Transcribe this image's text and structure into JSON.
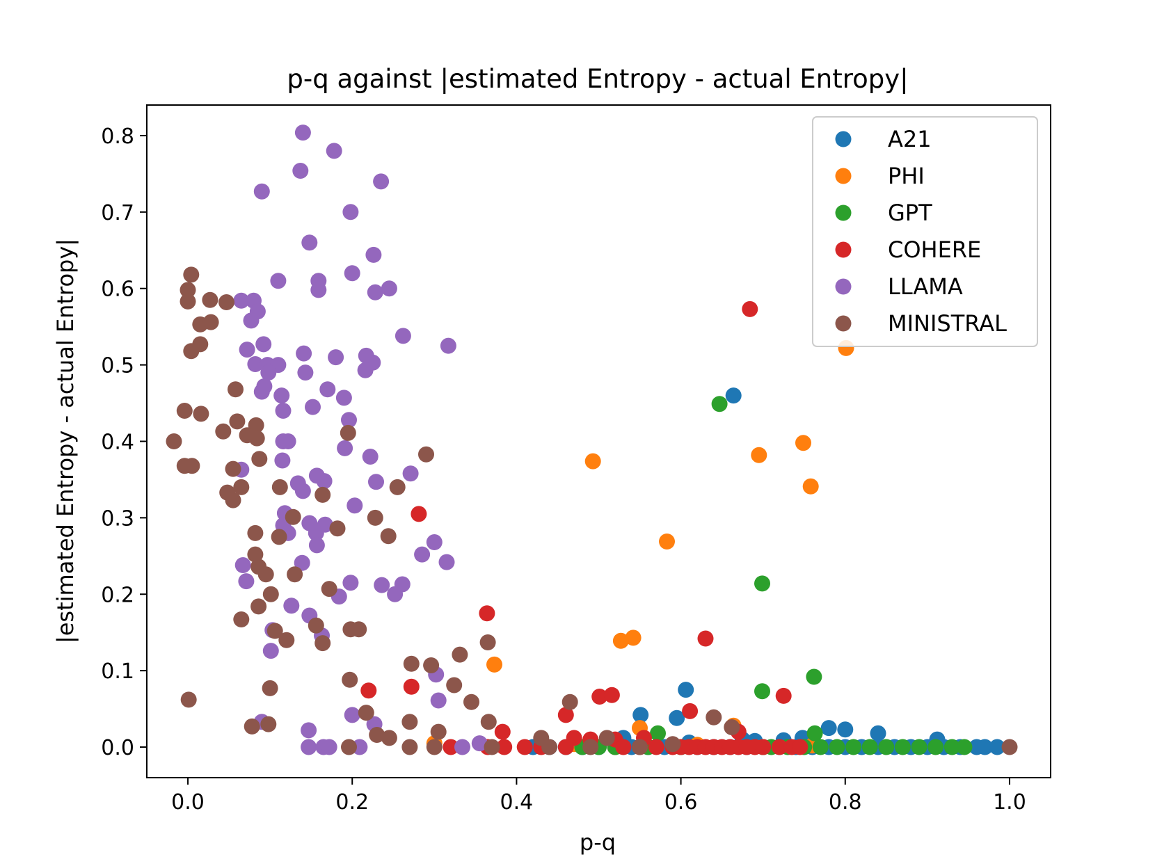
{
  "chart_data": {
    "type": "scatter",
    "title": "p-q against |estimated Entropy - actual Entropy|",
    "xlabel": "p-q",
    "ylabel": "|estimated Entropy - actual Entropy|",
    "xlim": [
      -0.05,
      1.05
    ],
    "ylim": [
      -0.04,
      0.84
    ],
    "xticks": [
      0.0,
      0.2,
      0.4,
      0.6,
      0.8,
      1.0
    ],
    "xtick_labels": [
      "0.0",
      "0.2",
      "0.4",
      "0.6",
      "0.8",
      "1.0"
    ],
    "yticks": [
      0.0,
      0.1,
      0.2,
      0.3,
      0.4,
      0.5,
      0.6,
      0.7,
      0.8
    ],
    "ytick_labels": [
      "0.0",
      "0.1",
      "0.2",
      "0.3",
      "0.4",
      "0.5",
      "0.6",
      "0.7",
      "0.8"
    ],
    "legend_position": "top-right",
    "series": [
      {
        "name": "A21",
        "color": "#1f77b4",
        "points": [
          [
            0.42,
            0
          ],
          [
            0.44,
            0
          ],
          [
            0.46,
            0
          ],
          [
            0.48,
            0
          ],
          [
            0.5,
            0
          ],
          [
            0.52,
            0
          ],
          [
            0.54,
            0
          ],
          [
            0.56,
            0
          ],
          [
            0.58,
            0
          ],
          [
            0.6,
            0
          ],
          [
            0.62,
            0
          ],
          [
            0.64,
            0
          ],
          [
            0.66,
            0
          ],
          [
            0.68,
            0
          ],
          [
            0.7,
            0
          ],
          [
            0.72,
            0
          ],
          [
            0.74,
            0
          ],
          [
            0.76,
            0
          ],
          [
            0.78,
            0
          ],
          [
            0.8,
            0
          ],
          [
            0.82,
            0
          ],
          [
            0.84,
            0
          ],
          [
            0.86,
            0
          ],
          [
            0.88,
            0
          ],
          [
            0.9,
            0
          ],
          [
            0.92,
            0
          ],
          [
            0.94,
            0
          ],
          [
            0.96,
            0
          ],
          [
            0.97,
            0
          ],
          [
            0.985,
            0
          ],
          [
            0.664,
            0.46
          ],
          [
            0.606,
            0.075
          ],
          [
            0.551,
            0.042
          ],
          [
            0.595,
            0.038
          ],
          [
            0.78,
            0.025
          ],
          [
            0.8,
            0.023
          ],
          [
            0.84,
            0.018
          ],
          [
            0.912,
            0.01
          ],
          [
            0.748,
            0.012
          ],
          [
            0.725,
            0.009
          ],
          [
            0.69,
            0.008
          ],
          [
            0.675,
            0.01
          ],
          [
            0.53,
            0.012
          ],
          [
            0.61,
            0.006
          ]
        ]
      },
      {
        "name": "PHI",
        "color": "#ff7f0e",
        "points": [
          [
            0.801,
            0.522
          ],
          [
            0.749,
            0.398
          ],
          [
            0.695,
            0.382
          ],
          [
            0.758,
            0.341
          ],
          [
            0.493,
            0.374
          ],
          [
            0.583,
            0.269
          ],
          [
            0.542,
            0.143
          ],
          [
            0.527,
            0.139
          ],
          [
            0.373,
            0.108
          ],
          [
            0.55,
            0.025
          ],
          [
            0.664,
            0.028
          ],
          [
            0.3,
            0.005
          ],
          [
            0.47,
            0.004
          ],
          [
            0.52,
            0
          ],
          [
            0.62,
            0.003
          ],
          [
            0.7,
            0
          ],
          [
            0.76,
            0.002
          ]
        ]
      },
      {
        "name": "GPT",
        "color": "#2ca02c",
        "points": [
          [
            0.647,
            0.449
          ],
          [
            0.699,
            0.214
          ],
          [
            0.762,
            0.092
          ],
          [
            0.699,
            0.073
          ],
          [
            0.572,
            0.018
          ],
          [
            0.763,
            0.018
          ],
          [
            0.48,
            0
          ],
          [
            0.5,
            0
          ],
          [
            0.52,
            0
          ],
          [
            0.56,
            0
          ],
          [
            0.6,
            0
          ],
          [
            0.7,
            0
          ],
          [
            0.71,
            0
          ],
          [
            0.73,
            0
          ],
          [
            0.75,
            0
          ],
          [
            0.77,
            0
          ],
          [
            0.79,
            0
          ],
          [
            0.81,
            0
          ],
          [
            0.83,
            0
          ],
          [
            0.85,
            0
          ],
          [
            0.87,
            0
          ],
          [
            0.89,
            0
          ],
          [
            0.91,
            0
          ],
          [
            0.93,
            0
          ],
          [
            0.945,
            0
          ]
        ]
      },
      {
        "name": "COHERE",
        "color": "#d62728",
        "points": [
          [
            0.684,
            0.573
          ],
          [
            0.281,
            0.305
          ],
          [
            0.364,
            0.175
          ],
          [
            0.63,
            0.142
          ],
          [
            0.22,
            0.074
          ],
          [
            0.272,
            0.079
          ],
          [
            0.501,
            0.066
          ],
          [
            0.516,
            0.068
          ],
          [
            0.725,
            0.067
          ],
          [
            0.611,
            0.047
          ],
          [
            0.46,
            0.042
          ],
          [
            0.383,
            0.02
          ],
          [
            0.67,
            0.02
          ],
          [
            0.47,
            0.012
          ],
          [
            0.49,
            0.01
          ],
          [
            0.52,
            0.01
          ],
          [
            0.555,
            0.012
          ],
          [
            0.385,
            0
          ],
          [
            0.41,
            0
          ],
          [
            0.43,
            0
          ],
          [
            0.46,
            0
          ],
          [
            0.53,
            0
          ],
          [
            0.55,
            0
          ],
          [
            0.57,
            0
          ],
          [
            0.59,
            0
          ],
          [
            0.6,
            0
          ],
          [
            0.61,
            0
          ],
          [
            0.62,
            0
          ],
          [
            0.63,
            0
          ],
          [
            0.64,
            0
          ],
          [
            0.65,
            0
          ],
          [
            0.66,
            0
          ],
          [
            0.67,
            0
          ],
          [
            0.68,
            0
          ],
          [
            0.69,
            0
          ],
          [
            0.7,
            0
          ],
          [
            0.72,
            0
          ],
          [
            0.735,
            0
          ],
          [
            0.745,
            0
          ],
          [
            0.32,
            0
          ],
          [
            0.365,
            0
          ]
        ]
      },
      {
        "name": "LLAMA",
        "color": "#9467bd",
        "points": [
          [
            0.14,
            0.804
          ],
          [
            0.178,
            0.78
          ],
          [
            0.137,
            0.754
          ],
          [
            0.235,
            0.74
          ],
          [
            0.09,
            0.727
          ],
          [
            0.198,
            0.7
          ],
          [
            0.148,
            0.66
          ],
          [
            0.226,
            0.644
          ],
          [
            0.2,
            0.62
          ],
          [
            0.11,
            0.61
          ],
          [
            0.159,
            0.61
          ],
          [
            0.159,
            0.598
          ],
          [
            0.228,
            0.595
          ],
          [
            0.245,
            0.6
          ],
          [
            0.065,
            0.584
          ],
          [
            0.08,
            0.584
          ],
          [
            0.085,
            0.57
          ],
          [
            0.077,
            0.558
          ],
          [
            0.262,
            0.538
          ],
          [
            0.317,
            0.525
          ],
          [
            0.092,
            0.527
          ],
          [
            0.141,
            0.515
          ],
          [
            0.072,
            0.52
          ],
          [
            0.18,
            0.51
          ],
          [
            0.217,
            0.512
          ],
          [
            0.225,
            0.503
          ],
          [
            0.082,
            0.501
          ],
          [
            0.097,
            0.5
          ],
          [
            0.11,
            0.5
          ],
          [
            0.098,
            0.49
          ],
          [
            0.143,
            0.49
          ],
          [
            0.216,
            0.493
          ],
          [
            0.09,
            0.465
          ],
          [
            0.093,
            0.472
          ],
          [
            0.17,
            0.468
          ],
          [
            0.114,
            0.46
          ],
          [
            0.19,
            0.457
          ],
          [
            0.152,
            0.445
          ],
          [
            0.116,
            0.44
          ],
          [
            0.196,
            0.428
          ],
          [
            0.116,
            0.4
          ],
          [
            0.122,
            0.4
          ],
          [
            0.191,
            0.391
          ],
          [
            0.222,
            0.38
          ],
          [
            0.115,
            0.375
          ],
          [
            0.065,
            0.363
          ],
          [
            0.271,
            0.358
          ],
          [
            0.157,
            0.355
          ],
          [
            0.166,
            0.348
          ],
          [
            0.229,
            0.347
          ],
          [
            0.134,
            0.345
          ],
          [
            0.14,
            0.335
          ],
          [
            0.203,
            0.316
          ],
          [
            0.118,
            0.306
          ],
          [
            0.148,
            0.293
          ],
          [
            0.167,
            0.291
          ],
          [
            0.116,
            0.29
          ],
          [
            0.156,
            0.28
          ],
          [
            0.122,
            0.28
          ],
          [
            0.3,
            0.268
          ],
          [
            0.157,
            0.264
          ],
          [
            0.285,
            0.252
          ],
          [
            0.315,
            0.242
          ],
          [
            0.139,
            0.241
          ],
          [
            0.067,
            0.238
          ],
          [
            0.198,
            0.215
          ],
          [
            0.236,
            0.212
          ],
          [
            0.261,
            0.213
          ],
          [
            0.071,
            0.217
          ],
          [
            0.252,
            0.2
          ],
          [
            0.184,
            0.197
          ],
          [
            0.126,
            0.185
          ],
          [
            0.148,
            0.172
          ],
          [
            0.103,
            0.153
          ],
          [
            0.163,
            0.146
          ],
          [
            0.101,
            0.126
          ],
          [
            0.302,
            0.095
          ],
          [
            0.305,
            0.061
          ],
          [
            0.2,
            0.042
          ],
          [
            0.227,
            0.03
          ],
          [
            0.09,
            0.033
          ],
          [
            0.147,
            0.022
          ],
          [
            0.147,
            0
          ],
          [
            0.165,
            0
          ],
          [
            0.172,
            0
          ],
          [
            0.209,
            0
          ],
          [
            0.334,
            0
          ],
          [
            0.355,
            0.005
          ]
        ]
      },
      {
        "name": "MINISTRAL",
        "color": "#8c564b",
        "points": [
          [
            0.004,
            0.618
          ],
          [
            0,
            0.598
          ],
          [
            0.0,
            0.583
          ],
          [
            0.027,
            0.585
          ],
          [
            0.047,
            0.582
          ],
          [
            0.015,
            0.553
          ],
          [
            0.028,
            0.556
          ],
          [
            0.015,
            0.527
          ],
          [
            0.004,
            0.518
          ],
          [
            0.058,
            0.468
          ],
          [
            -0.004,
            0.44
          ],
          [
            0.016,
            0.436
          ],
          [
            0.06,
            0.426
          ],
          [
            0.083,
            0.421
          ],
          [
            0.043,
            0.413
          ],
          [
            0.072,
            0.408
          ],
          [
            0.084,
            0.404
          ],
          [
            0.195,
            0.411
          ],
          [
            -0.017,
            0.4
          ],
          [
            0.087,
            0.377
          ],
          [
            0.29,
            0.383
          ],
          [
            -0.004,
            0.368
          ],
          [
            0.005,
            0.368
          ],
          [
            0.055,
            0.364
          ],
          [
            0.065,
            0.34
          ],
          [
            0.048,
            0.333
          ],
          [
            0.055,
            0.323
          ],
          [
            0.112,
            0.34
          ],
          [
            0.164,
            0.33
          ],
          [
            0.255,
            0.34
          ],
          [
            0.128,
            0.301
          ],
          [
            0.228,
            0.3
          ],
          [
            0.182,
            0.286
          ],
          [
            0.082,
            0.28
          ],
          [
            0.244,
            0.276
          ],
          [
            0.111,
            0.275
          ],
          [
            0.082,
            0.252
          ],
          [
            0.086,
            0.236
          ],
          [
            0.095,
            0.226
          ],
          [
            0.13,
            0.226
          ],
          [
            0.172,
            0.207
          ],
          [
            0.101,
            0.2
          ],
          [
            0.086,
            0.184
          ],
          [
            0.065,
            0.167
          ],
          [
            0.156,
            0.159
          ],
          [
            0.198,
            0.154
          ],
          [
            0.208,
            0.154
          ],
          [
            0.106,
            0.152
          ],
          [
            0.12,
            0.14
          ],
          [
            0.164,
            0.136
          ],
          [
            0.365,
            0.137
          ],
          [
            0.296,
            0.107
          ],
          [
            0.331,
            0.121
          ],
          [
            0.272,
            0.109
          ],
          [
            0.197,
            0.088
          ],
          [
            0.324,
            0.081
          ],
          [
            0.1,
            0.077
          ],
          [
            0.001,
            0.062
          ],
          [
            0.465,
            0.059
          ],
          [
            0.345,
            0.059
          ],
          [
            0.217,
            0.045
          ],
          [
            0.27,
            0.033
          ],
          [
            0.366,
            0.033
          ],
          [
            0.64,
            0.039
          ],
          [
            0.662,
            0.026
          ],
          [
            0.078,
            0.027
          ],
          [
            0.098,
            0.03
          ],
          [
            0.305,
            0.02
          ],
          [
            0.23,
            0.016
          ],
          [
            0.245,
            0.012
          ],
          [
            0.43,
            0.012
          ],
          [
            0.51,
            0.012
          ],
          [
            0.59,
            0.004
          ],
          [
            0.196,
            0
          ],
          [
            0.27,
            0
          ],
          [
            0.3,
            0
          ],
          [
            0.37,
            0
          ],
          [
            0.44,
            0
          ],
          [
            0.49,
            0
          ],
          [
            0.55,
            0
          ],
          [
            1.0,
            0
          ]
        ]
      }
    ]
  }
}
